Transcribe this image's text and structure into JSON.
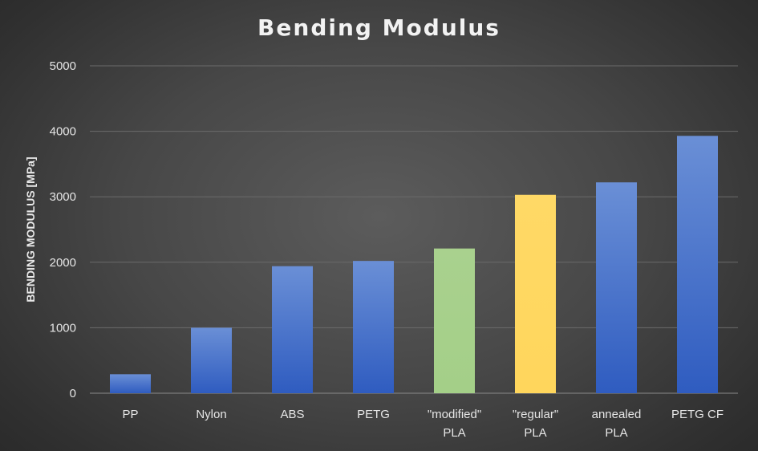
{
  "chart_data": {
    "type": "bar",
    "title": "Bending Modulus",
    "xlabel": "",
    "ylabel": "BENDING MODULUS [MPa]",
    "ylim": [
      0,
      5000
    ],
    "yticks": [
      0,
      1000,
      2000,
      3000,
      4000,
      5000
    ],
    "grid": true,
    "categories": [
      [
        "PP"
      ],
      [
        "Nylon"
      ],
      [
        "ABS"
      ],
      [
        "PETG"
      ],
      [
        "\"modified\"",
        "PLA"
      ],
      [
        "\"regular\"",
        "PLA"
      ],
      [
        "annealed",
        "PLA"
      ],
      [
        "PETG CF"
      ]
    ],
    "values": [
      290,
      1000,
      1940,
      2020,
      2210,
      3030,
      3220,
      3930
    ],
    "colors": [
      "#4472c4",
      "#4472c4",
      "#4472c4",
      "#4472c4",
      "#a9d18e",
      "#ffd966",
      "#4472c4",
      "#4472c4"
    ]
  }
}
